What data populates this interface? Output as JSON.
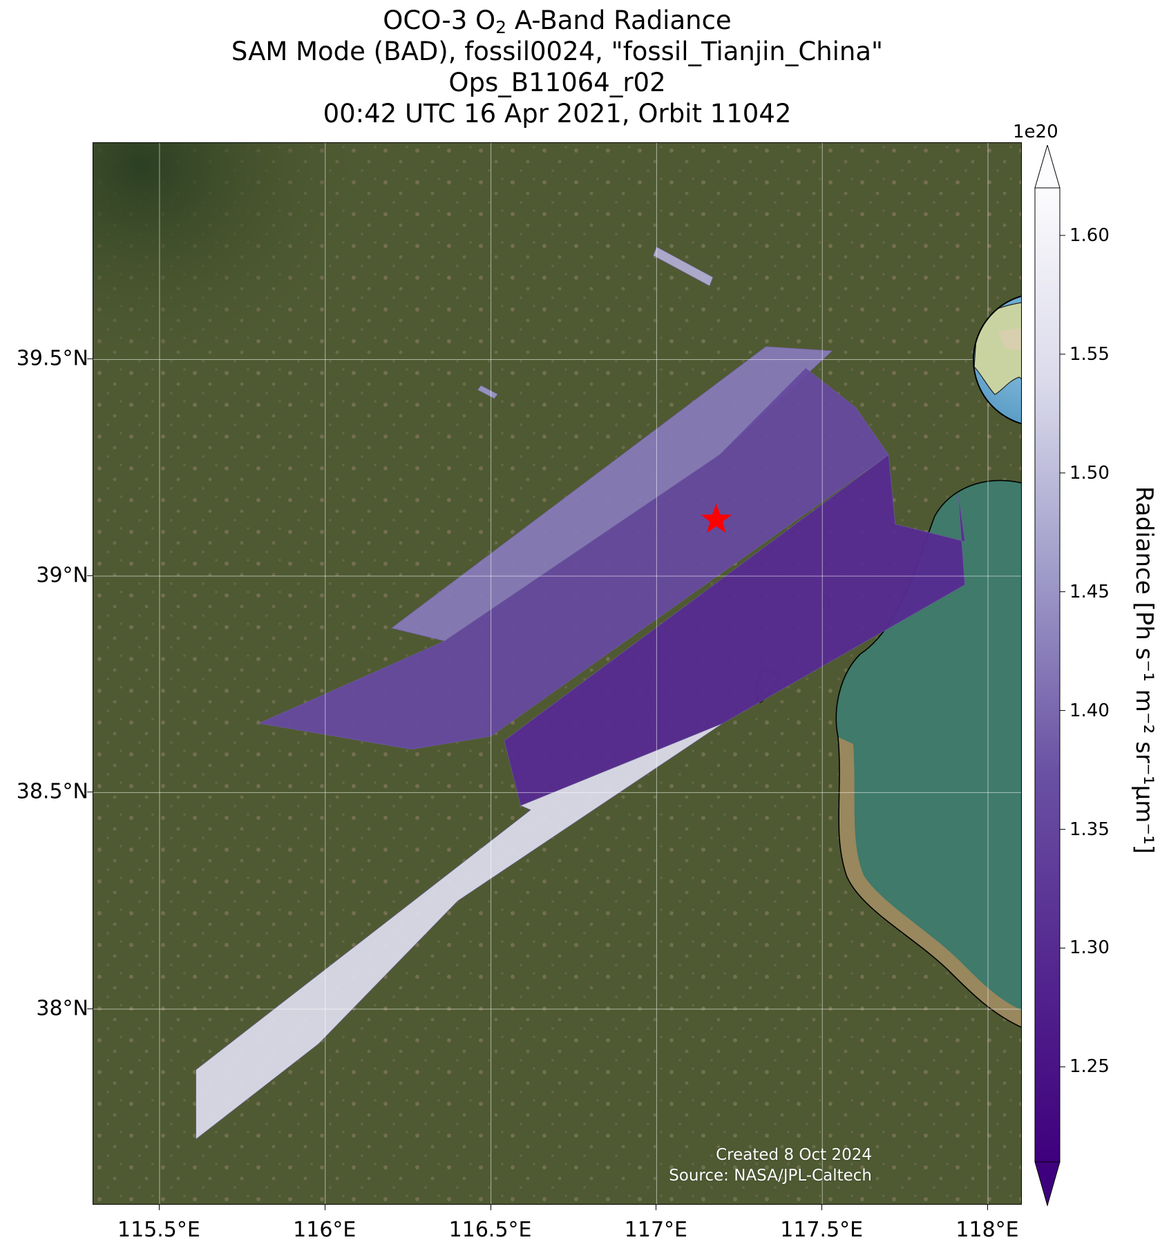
{
  "title": {
    "line1_prefix": "OCO-3 O",
    "line1_sub": "2",
    "line1_suffix": " A-Band Radiance",
    "line2": "SAM Mode (BAD), fossil0024, \"fossil_Tianjin_China\"",
    "line3": "Ops_B11064_r02",
    "line4": "00:42 UTC 16 Apr 2021, Orbit 11042"
  },
  "map": {
    "lon_range": [
      115.3,
      118.1
    ],
    "lat_range": [
      37.55,
      40.0
    ],
    "lat_ticks": [
      {
        "value": 39.5,
        "label": "39.5°N"
      },
      {
        "value": 39.0,
        "label": "39°N"
      },
      {
        "value": 38.5,
        "label": "38.5°N"
      },
      {
        "value": 38.0,
        "label": "38°N"
      }
    ],
    "lon_ticks": [
      {
        "value": 115.5,
        "label": "115.5°E"
      },
      {
        "value": 116.0,
        "label": "116°E"
      },
      {
        "value": 116.5,
        "label": "116.5°E"
      },
      {
        "value": 117.0,
        "label": "117°E"
      },
      {
        "value": 117.5,
        "label": "117.5°E"
      },
      {
        "value": 118.0,
        "label": "118°E"
      }
    ],
    "target_marker": {
      "lon": 117.18,
      "lat": 39.13,
      "color": "#ff0000",
      "shape": "star"
    },
    "background_colors": {
      "land": "#4f5a32",
      "mountains": "#2f4424",
      "sea": "#3f7a6a",
      "coast_mud": "#a98a5c"
    },
    "swaths": [
      {
        "corners": [
          [
            117.0,
            39.76
          ],
          [
            117.17,
            39.69
          ],
          [
            117.16,
            39.67
          ],
          [
            116.99,
            39.74
          ]
        ],
        "value": 1.48
      },
      {
        "corners": [
          [
            116.47,
            39.44
          ],
          [
            116.52,
            39.42
          ],
          [
            116.51,
            39.41
          ],
          [
            116.46,
            39.43
          ]
        ],
        "value": 1.45
      },
      {
        "corners": [
          [
            116.2,
            38.88
          ],
          [
            117.33,
            39.53
          ],
          [
            117.53,
            39.52
          ],
          [
            117.19,
            39.28
          ],
          [
            116.36,
            38.85
          ]
        ],
        "value": 1.42
      },
      {
        "corners": [
          [
            115.8,
            38.66
          ],
          [
            116.36,
            38.85
          ],
          [
            117.19,
            39.28
          ],
          [
            117.45,
            39.48
          ],
          [
            117.6,
            39.39
          ],
          [
            117.7,
            39.28
          ],
          [
            116.5,
            38.63
          ],
          [
            116.26,
            38.6
          ]
        ],
        "value": 1.36
      },
      {
        "corners": [
          [
            116.54,
            38.62
          ],
          [
            117.7,
            39.28
          ],
          [
            117.72,
            39.12
          ],
          [
            117.93,
            39.08
          ],
          [
            117.91,
            39.19
          ],
          [
            117.93,
            38.98
          ],
          [
            117.2,
            38.66
          ],
          [
            116.59,
            38.47
          ]
        ],
        "value": 1.3
      },
      {
        "corners": [
          [
            115.61,
            37.86
          ],
          [
            116.62,
            38.46
          ],
          [
            116.59,
            38.47
          ],
          [
            117.2,
            38.66
          ],
          [
            116.4,
            38.25
          ],
          [
            115.98,
            37.92
          ],
          [
            115.61,
            37.7
          ]
        ],
        "value": 1.54
      }
    ]
  },
  "colorbar": {
    "exponent": "1e20",
    "vmin": 1.21,
    "vmax": 1.62,
    "ticks": [
      "1.25",
      "1.30",
      "1.35",
      "1.40",
      "1.45",
      "1.50",
      "1.55",
      "1.60"
    ],
    "label": "Radiance [Ph s⁻¹ m⁻² sr⁻¹μm⁻¹]",
    "extend": "both",
    "colormap": "Purples_r",
    "low_color": "#3f007d",
    "high_color": "#fcfbfd"
  },
  "inset_globe": {
    "center": "East Asia",
    "marker_color": "#ff0000"
  },
  "credits": {
    "created": "Created 8 Oct 2024",
    "source": "Source: NASA/JPL-Caltech"
  }
}
